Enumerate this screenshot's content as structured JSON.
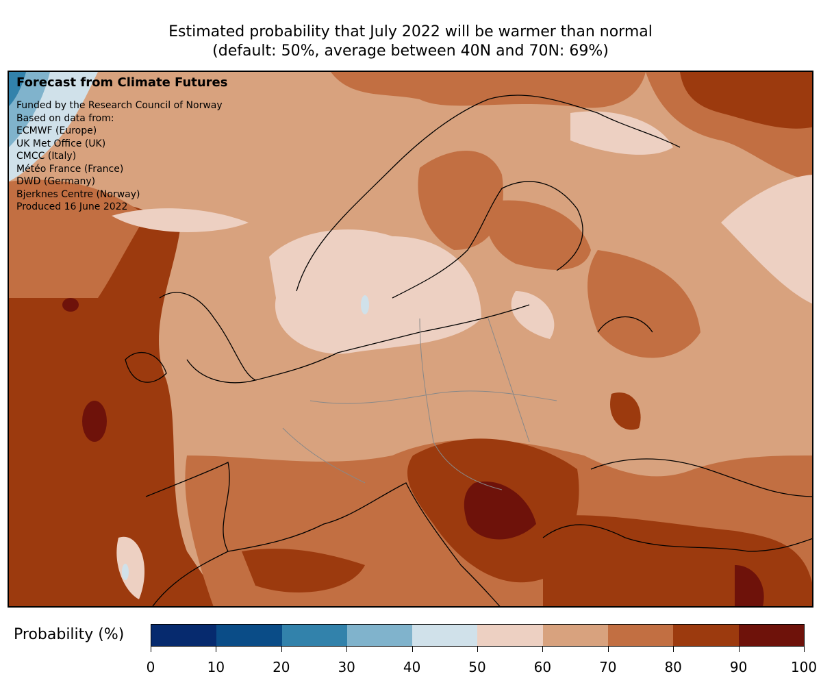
{
  "title": {
    "line1": "Estimated probability that July 2022 will be warmer than normal",
    "line2": "(default: 50%, average between 40N and 70N: 69%)"
  },
  "info": {
    "heading": "Forecast from Climate Futures",
    "lines": [
      "Funded by the Research Council of Norway",
      "Based on data from:",
      "ECMWF (Europe)",
      "UK Met Office (UK)",
      "CMCC (Italy)",
      "Météo France (France)",
      "DWD (Germany)",
      "Bjerknes Centre (Norway)",
      "Produced 16 June 2022"
    ]
  },
  "colorbar": {
    "label": "Probability (%)",
    "ticks": [
      "0",
      "10",
      "20",
      "30",
      "40",
      "50",
      "60",
      "70",
      "80",
      "90",
      "100"
    ],
    "colors": [
      "#062a6e",
      "#0a4c87",
      "#3282ab",
      "#80b3cc",
      "#d0e1ea",
      "#edd0c2",
      "#d8a27e",
      "#c26f42",
      "#9c3a0e",
      "#6e120a"
    ]
  },
  "map": {
    "region": "Europe",
    "variable": "probability of above-normal July 2022 temperature"
  }
}
